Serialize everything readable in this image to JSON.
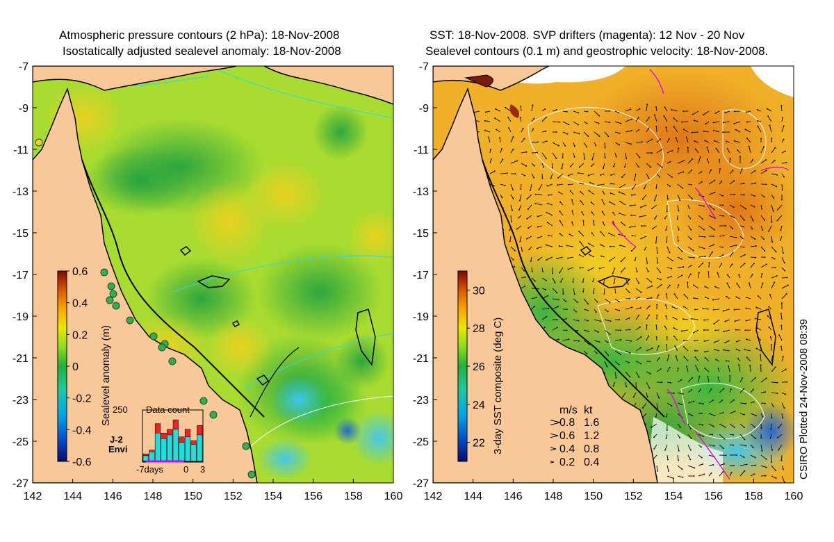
{
  "left_panel": {
    "title_line1": "Atmospheric pressure contours (2 hPa): 18-Nov-2008",
    "title_line2": "Isostatically adjusted sealevel anomaly: 18-Nov-2008",
    "colorbar": {
      "label": "Sealevel anomaly (m)",
      "ticks": [
        "0.6",
        "0.4",
        "0.2",
        "0",
        "-0.2",
        "-0.4",
        "-0.6"
      ],
      "range": [
        -0.6,
        0.6
      ]
    },
    "inset": {
      "title": "Data count",
      "y_max_label": "250",
      "x_labels": [
        "-7days",
        "0",
        "3"
      ],
      "legend": [
        {
          "name": "J-2",
          "color": "#ee2222"
        },
        {
          "name": "Envi",
          "color": "#22dddd"
        }
      ],
      "j2_counts": [
        40,
        60,
        200,
        150,
        170,
        220,
        130,
        170,
        110,
        190
      ],
      "envi_counts": [
        30,
        50,
        150,
        120,
        140,
        170,
        100,
        130,
        90,
        140
      ]
    }
  },
  "right_panel": {
    "title_line1": "SST: 18-Nov-2008. SVP drifters (magenta): 12 Nov - 20 Nov",
    "title_line2": "Sealevel contours (0.1 m) and geostrophic velocity: 18-Nov-2008.",
    "colorbar": {
      "label": "3-day SST composite (deg C)",
      "ticks": [
        "30",
        "28",
        "26",
        "24",
        "22"
      ],
      "range": [
        21,
        31
      ]
    },
    "velocity_legend": {
      "headers": [
        "m/s",
        "kt"
      ],
      "rows": [
        {
          "ms": "0.8",
          "kt": "1.6"
        },
        {
          "ms": "0.6",
          "kt": "1.2"
        },
        {
          "ms": "0.4",
          "kt": "0.8"
        },
        {
          "ms": "0.2",
          "kt": "0.4"
        }
      ]
    }
  },
  "axes": {
    "lon_ticks": [
      "142",
      "144",
      "146",
      "148",
      "150",
      "152",
      "154",
      "156",
      "158",
      "160"
    ],
    "lat_ticks": [
      "-7",
      "-9",
      "-11",
      "-13",
      "-15",
      "-17",
      "-19",
      "-21",
      "-23",
      "-25",
      "-27"
    ],
    "lon_range": [
      142,
      160
    ],
    "lat_range": [
      -27,
      -7
    ]
  },
  "credit": "CSIRO Plotted 24-Nov-2008 08:39",
  "colors": {
    "land": "#f9c898",
    "coast": "#000000",
    "drifters": "#e000e0"
  }
}
